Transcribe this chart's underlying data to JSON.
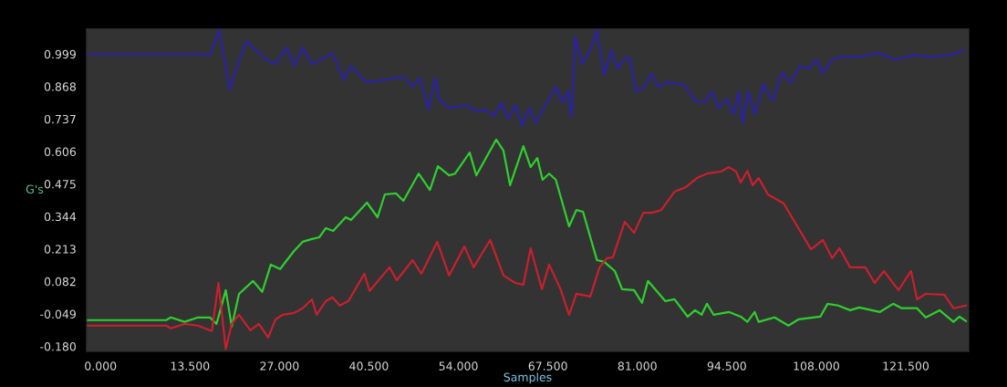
{
  "chart_data": {
    "type": "line",
    "xlabel": "Samples",
    "ylabel": "G's",
    "xlim": [
      -2.1,
      131
    ],
    "ylim": [
      -0.2,
      1.1
    ],
    "xticks": [
      {
        "value": 0,
        "label": "0.000"
      },
      {
        "value": 13.5,
        "label": "13.500"
      },
      {
        "value": 27,
        "label": "27.000"
      },
      {
        "value": 40.5,
        "label": "40.500"
      },
      {
        "value": 54,
        "label": "54.000"
      },
      {
        "value": 67.5,
        "label": "67.500"
      },
      {
        "value": 81,
        "label": "81.000"
      },
      {
        "value": 94.5,
        "label": "94.500"
      },
      {
        "value": 108,
        "label": "108.000"
      },
      {
        "value": 121.5,
        "label": "121.500"
      }
    ],
    "yticks": [
      {
        "value": -0.18,
        "label": "-0.180"
      },
      -0.049,
      0.082,
      0.213,
      0.344,
      0.475,
      0.606,
      0.737,
      0.868,
      0.999
    ],
    "grid": false,
    "marker": "none",
    "line_style": "solid",
    "series": [
      {
        "color": "#2a22a6",
        "x": [
          -2.1,
          14.7,
          16.5,
          17.9,
          19.5,
          21.3,
          22.0,
          25.0,
          26.4,
          28.1,
          29.2,
          30.5,
          31.9,
          33.3,
          35.0,
          36.7,
          37.8,
          39.5,
          40.2,
          42.9,
          45.7,
          47.1,
          48.2,
          49.5,
          50.5,
          51.2,
          52.6,
          55.3,
          56.7,
          58.1,
          59.4,
          60.5,
          61.5,
          62.6,
          63.6,
          64.7,
          65.6,
          66.6,
          67.7,
          68.8,
          69.6,
          70.5,
          71.1,
          71.6,
          72.7,
          73.9,
          74.9,
          76.0,
          77.1,
          78.0,
          79.0,
          79.8,
          80.8,
          82.1,
          83.1,
          84.2,
          85.6,
          88.1,
          89.7,
          91.1,
          92.2,
          93.3,
          94.5,
          95.5,
          96.3,
          96.9,
          97.7,
          98.7,
          100.0,
          101.4,
          102.8,
          104.2,
          105.5,
          106.9,
          108.0,
          109.0,
          110.4,
          111.7,
          114.5,
          117.2,
          120.0,
          122.7,
          125.5,
          128.2,
          130.3
        ],
        "values": [
          0.999,
          0.999,
          0.995,
          1.098,
          0.856,
          1.003,
          1.05,
          0.977,
          0.959,
          1.025,
          0.951,
          1.025,
          0.959,
          0.977,
          1.003,
          0.896,
          0.951,
          0.903,
          0.885,
          0.896,
          0.907,
          0.867,
          0.903,
          0.775,
          0.903,
          0.812,
          0.782,
          0.793,
          0.767,
          0.775,
          0.749,
          0.804,
          0.738,
          0.793,
          0.709,
          0.782,
          0.72,
          0.767,
          0.819,
          0.867,
          0.804,
          0.848,
          0.745,
          1.069,
          0.959,
          1.014,
          1.095,
          0.915,
          1.014,
          0.94,
          0.977,
          0.988,
          0.848,
          0.867,
          0.922,
          0.867,
          0.885,
          0.874,
          0.812,
          0.804,
          0.848,
          0.782,
          0.819,
          0.756,
          0.848,
          0.72,
          0.848,
          0.756,
          0.878,
          0.812,
          0.922,
          0.885,
          0.951,
          0.94,
          0.977,
          0.922,
          0.977,
          0.988,
          0.988,
          1.003,
          0.977,
          0.995,
          0.988,
          0.995,
          1.014
        ]
      },
      {
        "color": "#2fcf2f",
        "x": [
          -2.1,
          9.9,
          10.6,
          12.7,
          14.7,
          16.5,
          17.5,
          18.9,
          19.8,
          20.9,
          23.0,
          24.4,
          25.7,
          27.1,
          27.8,
          29.2,
          30.5,
          31.9,
          33.0,
          34.0,
          35.1,
          37.0,
          37.8,
          40.2,
          41.8,
          42.9,
          44.6,
          45.7,
          48.0,
          49.7,
          50.9,
          52.6,
          53.5,
          55.7,
          56.7,
          59.7,
          60.8,
          61.8,
          63.8,
          64.9,
          65.9,
          66.7,
          67.7,
          68.7,
          70.7,
          71.8,
          72.8,
          74.9,
          76.0,
          77.6,
          78.7,
          80.5,
          81.7,
          82.6,
          85.2,
          86.6,
          88.6,
          89.7,
          90.7,
          91.5,
          92.5,
          94.8,
          96.6,
          97.6,
          98.7,
          99.3,
          101.7,
          103.8,
          105.3,
          108.6,
          109.7,
          111.3,
          113.1,
          114.5,
          117.6,
          119.6,
          120.9,
          123.2,
          124.5,
          126.6,
          128.7,
          129.6,
          130.6
        ],
        "values": [
          -0.074,
          -0.074,
          -0.063,
          -0.081,
          -0.063,
          -0.063,
          -0.089,
          0.047,
          -0.1,
          0.032,
          0.084,
          0.04,
          0.15,
          0.132,
          0.157,
          0.205,
          0.242,
          0.253,
          0.26,
          0.297,
          0.286,
          0.341,
          0.33,
          0.4,
          0.341,
          0.433,
          0.437,
          0.407,
          0.517,
          0.451,
          0.547,
          0.51,
          0.517,
          0.602,
          0.51,
          0.654,
          0.609,
          0.47,
          0.628,
          0.543,
          0.58,
          0.492,
          0.517,
          0.492,
          0.304,
          0.37,
          0.363,
          0.168,
          0.161,
          0.124,
          0.051,
          0.047,
          -0.004,
          0.084,
          0.003,
          0.01,
          -0.06,
          -0.034,
          -0.052,
          -0.008,
          -0.052,
          -0.041,
          -0.06,
          -0.081,
          -0.041,
          -0.081,
          -0.063,
          -0.096,
          -0.071,
          -0.06,
          -0.008,
          -0.015,
          -0.034,
          -0.023,
          -0.041,
          -0.008,
          -0.026,
          -0.026,
          -0.063,
          -0.034,
          -0.081,
          -0.06,
          -0.078
        ]
      },
      {
        "color": "#c8202e",
        "x": [
          -2.1,
          9.9,
          10.6,
          12.7,
          14.7,
          16.8,
          17.8,
          18.9,
          19.8,
          20.9,
          22.6,
          23.9,
          25.3,
          26.4,
          27.5,
          29.2,
          30.5,
          31.9,
          32.6,
          34.0,
          35.0,
          36.1,
          37.4,
          39.8,
          40.6,
          43.6,
          44.7,
          47.1,
          48.4,
          50.8,
          52.6,
          54.9,
          56.3,
          58.8,
          60.8,
          62.6,
          63.8,
          64.9,
          66.6,
          67.7,
          69.4,
          70.7,
          71.8,
          73.9,
          75.3,
          76.4,
          77.3,
          79.1,
          80.5,
          81.9,
          83.2,
          84.6,
          86.6,
          88.3,
          90.0,
          91.5,
          93.6,
          94.8,
          95.9,
          96.6,
          97.6,
          98.4,
          99.3,
          100.7,
          103.1,
          105.3,
          107.2,
          109.0,
          110.4,
          111.5,
          113.1,
          115.4,
          116.8,
          118.2,
          120.4,
          122.3,
          123.2,
          124.5,
          127.3,
          128.7,
          130.6
        ],
        "values": [
          -0.096,
          -0.096,
          -0.107,
          -0.089,
          -0.096,
          -0.118,
          0.076,
          -0.19,
          -0.089,
          -0.052,
          -0.115,
          -0.089,
          -0.144,
          -0.071,
          -0.052,
          -0.045,
          -0.026,
          0.01,
          -0.052,
          0.003,
          0.018,
          -0.015,
          0.003,
          0.113,
          0.044,
          0.139,
          0.087,
          0.168,
          0.113,
          0.242,
          0.106,
          0.223,
          0.139,
          0.249,
          0.106,
          0.076,
          0.069,
          0.216,
          0.051,
          0.15,
          0.051,
          -0.052,
          0.032,
          0.021,
          0.139,
          0.176,
          0.179,
          0.323,
          0.278,
          0.359,
          0.359,
          0.37,
          0.444,
          0.462,
          0.499,
          0.517,
          0.525,
          0.543,
          0.525,
          0.481,
          0.528,
          0.47,
          0.499,
          0.433,
          0.396,
          0.297,
          0.212,
          0.249,
          0.176,
          0.216,
          0.139,
          0.139,
          0.076,
          0.124,
          0.047,
          0.124,
          0.01,
          0.032,
          0.029,
          -0.026,
          -0.015
        ]
      }
    ]
  }
}
